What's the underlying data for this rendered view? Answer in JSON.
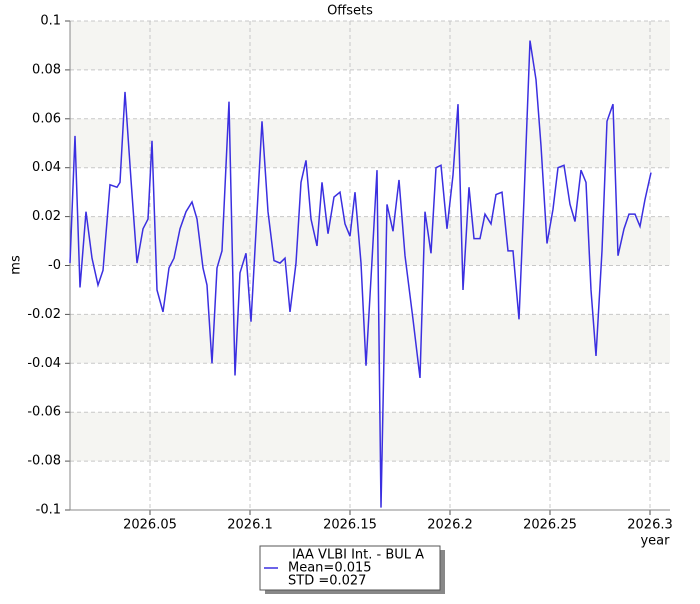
{
  "chart_data": {
    "type": "line",
    "title": "Offsets",
    "xlabel": "year",
    "ylabel": "ms",
    "x": [
      2026.01,
      2026.0125,
      2026.015,
      2026.018,
      2026.021,
      2026.024,
      2026.0265,
      2026.03,
      2026.0335,
      2026.035,
      2026.0375,
      2026.0405,
      2026.0435,
      2026.0465,
      2026.049,
      2026.051,
      2026.0535,
      2026.0565,
      2026.0595,
      2026.062,
      2026.065,
      2026.068,
      2026.071,
      2026.0735,
      2026.0765,
      2026.0785,
      2026.081,
      2026.0835,
      2026.086,
      2026.0895,
      2026.0925,
      2026.095,
      2026.098,
      2026.1005,
      2026.103,
      2026.106,
      2026.109,
      2026.112,
      2026.115,
      2026.1175,
      2026.12,
      2026.123,
      2026.1255,
      2026.128,
      2026.1305,
      2026.1335,
      2026.136,
      2026.139,
      2026.142,
      2026.145,
      2026.1475,
      2026.15,
      2026.1525,
      2026.1555,
      2026.158,
      2026.161,
      2026.1635,
      2026.1655,
      2026.1685,
      2026.1715,
      2026.1745,
      2026.1775,
      2026.1815,
      2026.185,
      2026.1875,
      2026.1905,
      2026.193,
      2026.1955,
      2026.1985,
      2026.2015,
      2026.204,
      2026.2065,
      2026.2095,
      2026.212,
      2026.215,
      2026.2175,
      2026.2205,
      2026.223,
      2026.226,
      2026.229,
      2026.2315,
      2026.2345,
      2026.237,
      2026.24,
      2026.243,
      2026.2455,
      2026.2485,
      2026.2515,
      2026.254,
      2026.257,
      2026.26,
      2026.2625,
      2026.2655,
      2026.268,
      2026.2705,
      2026.273,
      2026.276,
      2026.2785,
      2026.2815,
      2026.284,
      2026.287,
      2026.2895,
      2026.2925,
      2026.295,
      2026.2975,
      2026.3005
    ],
    "series": [
      {
        "name": "IAA VLBI Int. - BUL A",
        "color": "#3b2fe0",
        "values": [
          0.001,
          0.053,
          -0.009,
          0.022,
          0.003,
          -0.008,
          -0.002,
          0.033,
          0.032,
          0.034,
          0.071,
          0.035,
          0.001,
          0.015,
          0.019,
          0.051,
          -0.01,
          -0.019,
          -0.001,
          0.003,
          0.015,
          0.022,
          0.026,
          0.019,
          -0.001,
          -0.008,
          -0.04,
          -0.001,
          0.006,
          0.067,
          -0.045,
          -0.003,
          0.005,
          -0.023,
          0.014,
          0.059,
          0.022,
          0.002,
          0.001,
          0.003,
          -0.019,
          0.001,
          0.034,
          0.043,
          0.019,
          0.008,
          0.034,
          0.013,
          0.028,
          0.03,
          0.017,
          0.012,
          0.03,
          0.001,
          -0.041,
          0.002,
          0.039,
          -0.099,
          0.025,
          0.014,
          0.035,
          0.004,
          -0.022,
          -0.046,
          0.022,
          0.005,
          0.04,
          0.041,
          0.015,
          0.037,
          0.066,
          -0.01,
          0.032,
          0.011,
          0.011,
          0.021,
          0.017,
          0.029,
          0.03,
          0.006,
          0.006,
          -0.022,
          0.027,
          0.092,
          0.076,
          0.049,
          0.009,
          0.023,
          0.04,
          0.041,
          0.025,
          0.018,
          0.039,
          0.034,
          -0.01,
          -0.037,
          0.006,
          0.059,
          0.066,
          0.004,
          0.015,
          0.021,
          0.021,
          0.016,
          0.027,
          0.038
        ]
      }
    ],
    "legend_notes": [
      "Mean=0.015",
      "STD =0.027"
    ],
    "xlim": [
      2026.01,
      2026.31
    ],
    "xticks": [
      2026.05,
      2026.1,
      2026.15,
      2026.2,
      2026.25,
      2026.3
    ],
    "ylim": [
      -0.1,
      0.1
    ],
    "yticks": [
      -0.1,
      -0.08,
      -0.06,
      -0.04,
      -0.02,
      {
        "value": 0,
        "label": "-0"
      },
      0.02,
      0.04,
      0.06,
      0.08,
      0.1
    ],
    "grid": true
  }
}
